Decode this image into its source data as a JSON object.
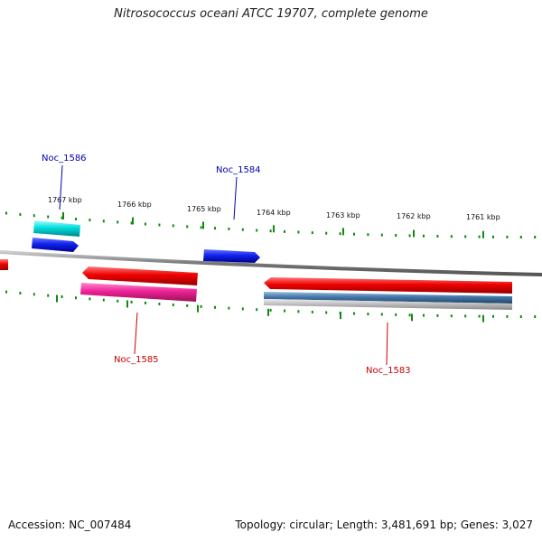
{
  "title": "Nitrosococcus oceani ATCC 19707, complete genome",
  "footer": {
    "accession": "Accession: NC_007484",
    "summary": "Topology: circular; Length: 3,481,691 bp; Genes: 3,027"
  },
  "scale": {
    "labels": [
      "1767 kbp",
      "1766 kbp",
      "1765 kbp",
      "1764 kbp",
      "1763 kbp",
      "1762 kbp",
      "1761 kbp"
    ],
    "tick_color": "#118811"
  },
  "genes": [
    {
      "name": "Noc_1586",
      "label_color": "#0000aa",
      "colors": [
        "#00d4d4",
        "#2233ee"
      ]
    },
    {
      "name": "Noc_1584",
      "label_color": "#0000aa",
      "colors": [
        "#2233ee"
      ]
    },
    {
      "name": "Noc_1585",
      "label_color": "#cc0000",
      "colors": [
        "#ee0000",
        "#dd2288"
      ]
    },
    {
      "name": "Noc_1583",
      "label_color": "#cc0000",
      "colors": [
        "#ee0000",
        "#4477aa",
        "#aaaaaa"
      ]
    }
  ],
  "colors": {
    "backbone": "#888888",
    "forward_gene": "#2233ee",
    "reverse_gene": "#ee0000",
    "cds_cyan": "#00d4d4",
    "cds_magenta": "#dd2288",
    "cds_steel": "#4477aa",
    "cds_gray": "#aaaaaa"
  }
}
